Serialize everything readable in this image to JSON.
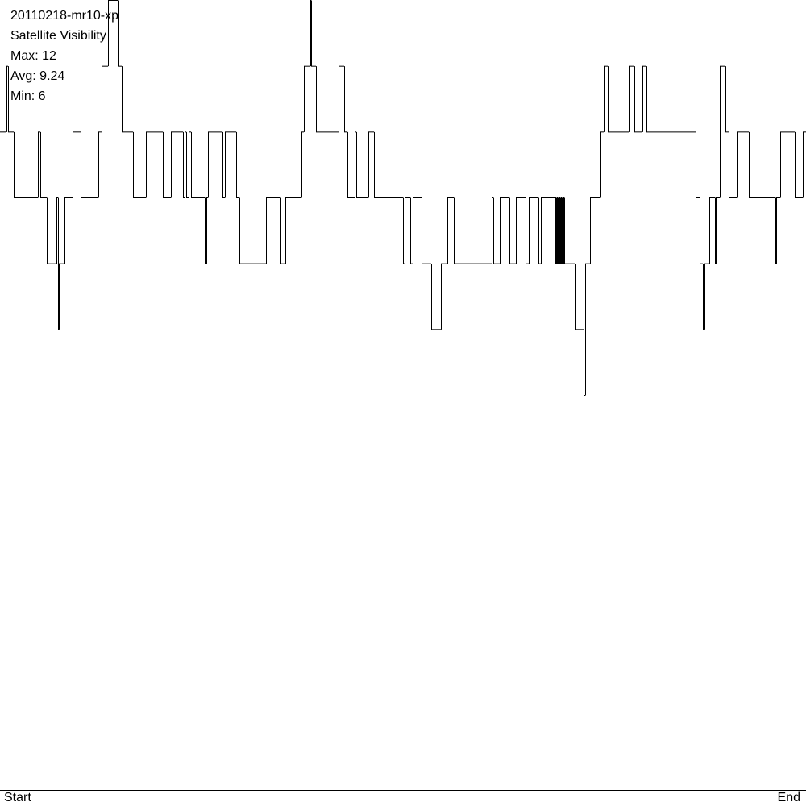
{
  "chart_data": {
    "type": "line",
    "step": "post",
    "title": "20110218-mr10-xp",
    "subtitle": "Satellite Visibility",
    "annotations": [
      "Max: 12",
      "Avg: 9.24",
      "Min: 6"
    ],
    "x_labels": [
      "Start",
      "End"
    ],
    "color": "#000000",
    "xlim": [
      0,
      1000
    ],
    "ylim": [
      0,
      12
    ],
    "x": [
      0,
      8,
      10,
      17,
      47,
      50,
      58,
      70,
      72,
      73,
      80,
      90,
      100,
      122,
      126,
      134,
      147,
      151,
      165,
      181,
      202,
      212,
      227,
      229,
      231,
      234,
      237,
      254,
      256,
      258,
      276,
      279,
      293,
      297,
      330,
      348,
      354,
      374,
      377,
      385,
      386,
      392,
      420,
      427,
      431,
      440,
      442,
      457,
      464,
      500,
      502,
      509,
      512,
      523,
      535,
      547,
      555,
      563,
      610,
      612,
      620,
      632,
      640,
      652,
      656,
      668,
      671,
      688,
      689,
      690,
      691,
      692,
      694,
      695,
      696,
      697,
      699,
      700,
      714,
      724,
      726,
      732,
      745,
      750,
      754,
      781,
      787,
      797,
      802,
      863,
      868,
      872,
      874,
      880,
      887,
      888,
      893,
      900,
      904,
      915,
      929,
      962,
      963,
      968,
      986,
      996,
      1000
    ],
    "values": [
      10,
      11,
      10,
      9,
      10,
      9,
      8,
      9,
      7,
      8,
      9,
      10,
      9,
      10,
      11,
      12,
      11,
      10,
      9,
      10,
      9,
      10,
      9,
      10,
      9,
      10,
      9,
      8,
      9,
      10,
      9,
      10,
      9,
      8,
      9,
      8,
      9,
      10,
      11,
      12,
      11,
      10,
      11,
      10,
      9,
      10,
      9,
      10,
      9,
      8,
      9,
      8,
      9,
      8,
      7,
      8,
      9,
      8,
      9,
      8,
      9,
      8,
      9,
      8,
      9,
      8,
      9,
      8,
      9,
      8,
      9,
      8,
      9,
      8,
      9,
      8,
      9,
      8,
      7,
      6,
      8,
      9,
      10,
      11,
      10,
      11,
      10,
      11,
      10,
      9,
      8,
      7,
      8,
      9,
      8,
      9,
      11,
      10,
      9,
      10,
      9,
      8,
      9,
      10,
      9,
      10,
      10
    ]
  }
}
